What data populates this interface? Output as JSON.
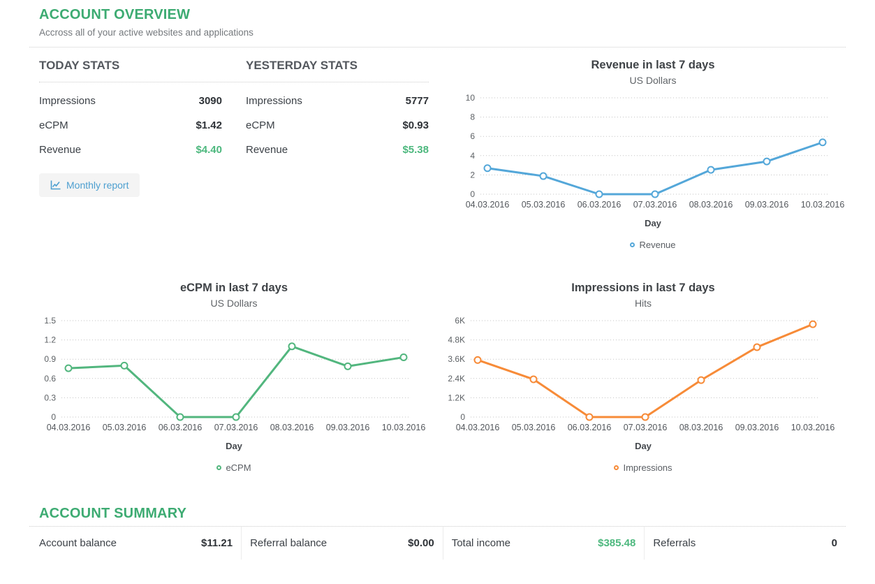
{
  "header": {
    "title": "ACCOUNT OVERVIEW",
    "subtitle": "Accross all of your active websites and applications"
  },
  "stats": {
    "today": {
      "heading": "TODAY STATS",
      "rows": [
        {
          "label": "Impressions",
          "value": "3090"
        },
        {
          "label": "eCPM",
          "value": "$1.42"
        },
        {
          "label": "Revenue",
          "value": "$4.40"
        }
      ]
    },
    "yesterday": {
      "heading": "YESTERDAY STATS",
      "rows": [
        {
          "label": "Impressions",
          "value": "5777"
        },
        {
          "label": "eCPM",
          "value": "$0.93"
        },
        {
          "label": "Revenue",
          "value": "$5.38"
        }
      ]
    },
    "monthly_report_label": "Monthly report"
  },
  "chart_data": [
    {
      "type": "line",
      "title": "Revenue in last 7 days",
      "subtitle": "US Dollars",
      "xlabel": "Day",
      "legend": "Revenue",
      "color": "#54a7d9",
      "x": [
        "04.03.2016",
        "05.03.2016",
        "06.03.2016",
        "07.03.2016",
        "08.03.2016",
        "09.03.2016",
        "10.03.2016"
      ],
      "values": [
        2.7,
        1.88,
        0,
        0,
        2.53,
        3.4,
        5.38
      ],
      "ymax": 10,
      "yticks": [
        {
          "value": 0,
          "label": "0"
        },
        {
          "value": 2,
          "label": "2"
        },
        {
          "value": 4,
          "label": "4"
        },
        {
          "value": 6,
          "label": "6"
        },
        {
          "value": 8,
          "label": "8"
        },
        {
          "value": 10,
          "label": "10"
        }
      ],
      "grid": "dotted",
      "legend_position": "bottom"
    },
    {
      "type": "line",
      "title": "eCPM in last 7 days",
      "subtitle": "US Dollars",
      "xlabel": "Day",
      "legend": "eCPM",
      "color": "#52b67e",
      "x": [
        "04.03.2016",
        "05.03.2016",
        "06.03.2016",
        "07.03.2016",
        "08.03.2016",
        "09.03.2016",
        "10.03.2016"
      ],
      "values": [
        0.76,
        0.8,
        0,
        0,
        1.1,
        0.79,
        0.93
      ],
      "ymax": 1.5,
      "yticks": [
        {
          "value": 0,
          "label": "0"
        },
        {
          "value": 0.3,
          "label": "0.3"
        },
        {
          "value": 0.6,
          "label": "0.6"
        },
        {
          "value": 0.9,
          "label": "0.9"
        },
        {
          "value": 1.2,
          "label": "1.2"
        },
        {
          "value": 1.5,
          "label": "1.5"
        }
      ],
      "grid": "dotted",
      "legend_position": "bottom"
    },
    {
      "type": "line",
      "title": "Impressions in last 7 days",
      "subtitle": "Hits",
      "xlabel": "Day",
      "legend": "Impressions",
      "color": "#f78b38",
      "x": [
        "04.03.2016",
        "05.03.2016",
        "06.03.2016",
        "07.03.2016",
        "08.03.2016",
        "09.03.2016",
        "10.03.2016"
      ],
      "values": [
        3550,
        2350,
        0,
        0,
        2300,
        4350,
        5777
      ],
      "ymax": 6000,
      "yticks": [
        {
          "value": 0,
          "label": "0"
        },
        {
          "value": 1200,
          "label": "1.2K"
        },
        {
          "value": 2400,
          "label": "2.4K"
        },
        {
          "value": 3600,
          "label": "3.6K"
        },
        {
          "value": 4800,
          "label": "4.8K"
        },
        {
          "value": 6000,
          "label": "6K"
        }
      ],
      "grid": "dotted",
      "legend_position": "bottom"
    }
  ],
  "summary": {
    "heading": "ACCOUNT SUMMARY",
    "items": [
      {
        "label": "Account balance",
        "value": "$11.21"
      },
      {
        "label": "Referral balance",
        "value": "$0.00"
      },
      {
        "label": "Total income",
        "value": "$385.48"
      },
      {
        "label": "Referrals",
        "value": "0"
      }
    ]
  },
  "colors": {
    "accent_green": "#3dab72",
    "value_green": "#4db87e",
    "button_blue": "#4d9fd0",
    "line_blue": "#54a7d9",
    "line_green": "#52b67e",
    "line_orange": "#f78b38"
  }
}
